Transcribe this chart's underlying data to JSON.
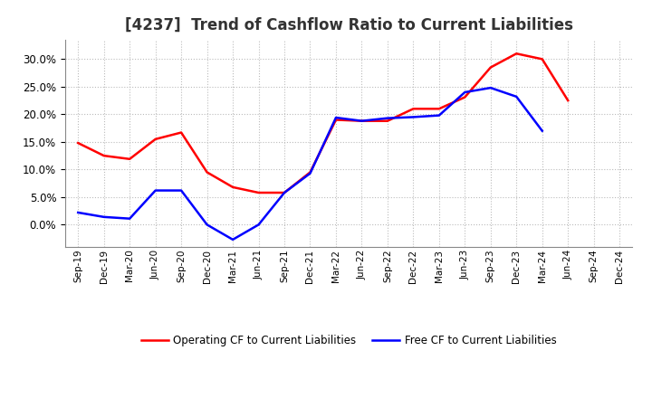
{
  "title": "[4237]  Trend of Cashflow Ratio to Current Liabilities",
  "x_labels": [
    "Sep-19",
    "Dec-19",
    "Mar-20",
    "Jun-20",
    "Sep-20",
    "Dec-20",
    "Mar-21",
    "Jun-21",
    "Sep-21",
    "Dec-21",
    "Mar-22",
    "Jun-22",
    "Sep-22",
    "Dec-22",
    "Mar-23",
    "Jun-23",
    "Sep-23",
    "Dec-23",
    "Mar-24",
    "Jun-24",
    "Sep-24",
    "Dec-24"
  ],
  "operating_cf": [
    0.148,
    0.125,
    0.119,
    0.155,
    0.167,
    0.095,
    0.068,
    0.058,
    0.058,
    0.095,
    0.19,
    0.188,
    0.188,
    0.21,
    0.21,
    0.231,
    0.285,
    0.31,
    0.3,
    0.225,
    null,
    null
  ],
  "free_cf": [
    0.022,
    0.014,
    0.011,
    0.062,
    0.062,
    0.0,
    -0.027,
    0.0,
    0.058,
    0.093,
    0.194,
    0.188,
    0.193,
    0.195,
    0.198,
    0.24,
    0.248,
    0.232,
    0.17,
    null,
    null,
    null
  ],
  "operating_color": "#ff0000",
  "free_color": "#0000ff",
  "ylim": [
    -0.04,
    0.335
  ],
  "yticks": [
    0.0,
    0.05,
    0.1,
    0.15,
    0.2,
    0.25,
    0.3
  ],
  "legend_op": "Operating CF to Current Liabilities",
  "legend_free": "Free CF to Current Liabilities",
  "bg_color": "#ffffff",
  "grid_color": "#aaaaaa",
  "title_fontsize": 12
}
